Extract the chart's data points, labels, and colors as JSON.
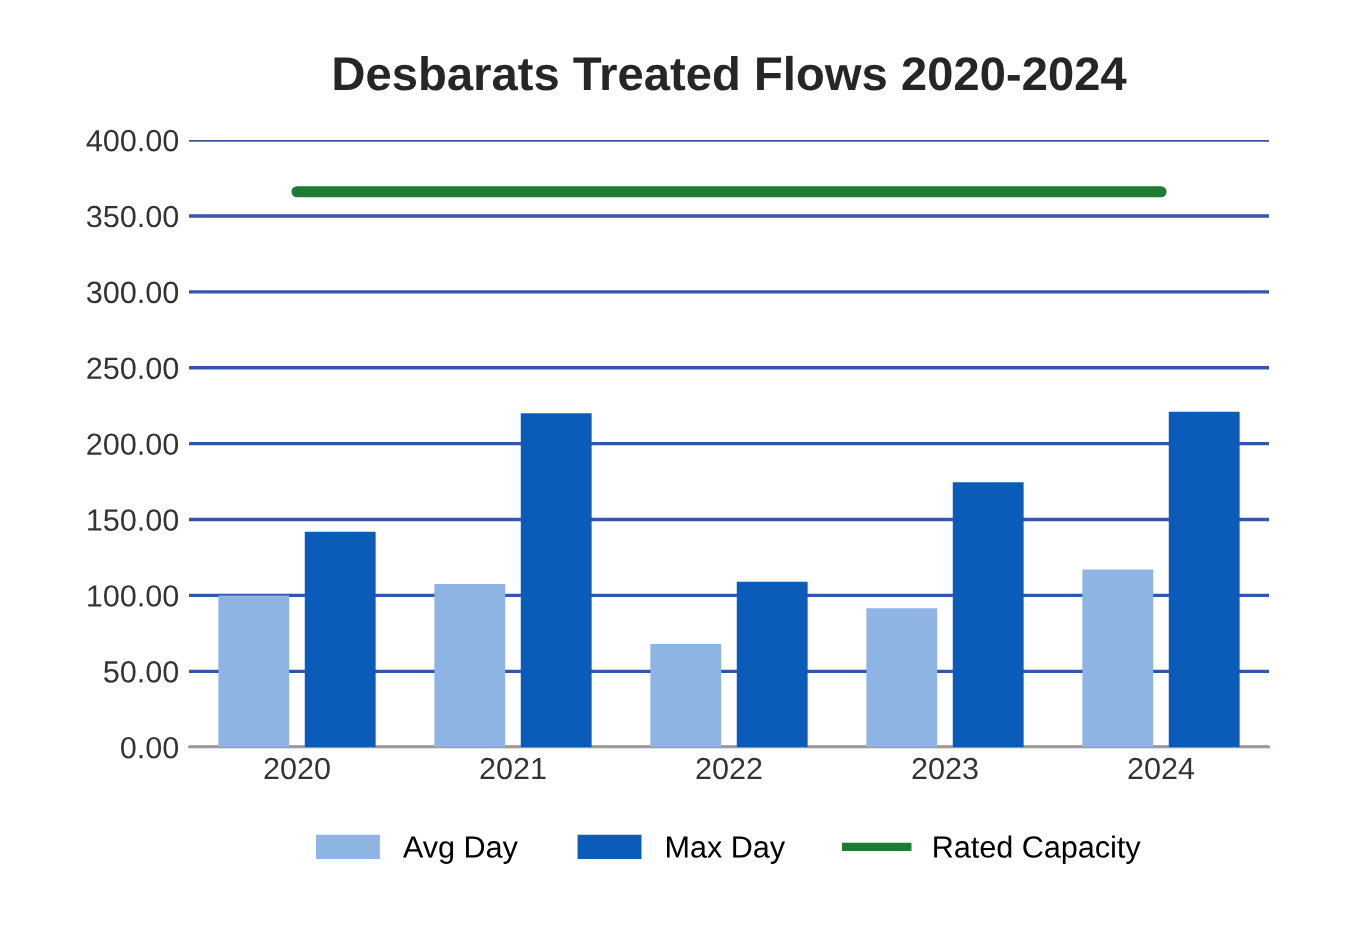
{
  "chart_data": {
    "type": "bar",
    "title": "Desbarats Treated Flows 2020-2024",
    "categories": [
      "2020",
      "2021",
      "2022",
      "2023",
      "2024"
    ],
    "series": [
      {
        "name": "Avg Day",
        "color": "#8db4e2",
        "values": [
          100,
          107.5,
          68,
          91.5,
          117
        ]
      },
      {
        "name": "Max Day",
        "color": "#0b5cb8",
        "values": [
          142,
          220,
          109,
          174.5,
          221
        ]
      },
      {
        "name": "Rated Capacity",
        "type": "line",
        "color": "#1e7b34",
        "values": [
          366,
          366,
          366,
          366,
          366
        ]
      }
    ],
    "ylim": [
      0,
      400
    ],
    "yticks": [
      {
        "value": 0,
        "label": "0.00"
      },
      {
        "value": 50,
        "label": "50.00"
      },
      {
        "value": 100,
        "label": "100.00"
      },
      {
        "value": 150,
        "label": "150.00"
      },
      {
        "value": 200,
        "label": "200.00"
      },
      {
        "value": 250,
        "label": "250.00"
      },
      {
        "value": 300,
        "label": "300.00"
      },
      {
        "value": 350,
        "label": "350.00"
      },
      {
        "value": 400,
        "label": "400.00"
      }
    ],
    "grid": "y",
    "legend": "bottom",
    "marker": "none",
    "line_style": "solid"
  }
}
